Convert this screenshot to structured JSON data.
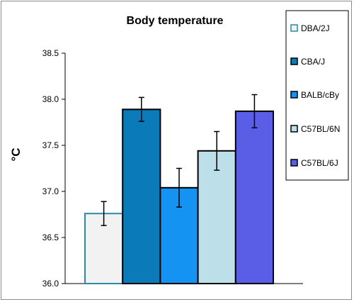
{
  "chart_data": {
    "type": "bar",
    "title": "Body temperature",
    "ylabel": "°C",
    "xlabel": "",
    "ylim": [
      36.0,
      38.5
    ],
    "yticks": [
      "36.0",
      "36.5",
      "37.0",
      "37.5",
      "38.0",
      "38.5"
    ],
    "grid": false,
    "legend_position": "right",
    "series": [
      {
        "name": "DBA/2J",
        "value": 36.76,
        "error": 0.13,
        "fill": "#f2f2f2",
        "stroke": "#2a8aa8"
      },
      {
        "name": "CBA/J",
        "value": 37.89,
        "error": 0.13,
        "fill": "#0a7ab8",
        "stroke": "#000000"
      },
      {
        "name": "BALB/cBy",
        "value": 37.04,
        "error": 0.21,
        "fill": "#1593f2",
        "stroke": "#000000"
      },
      {
        "name": "C57BL/6N",
        "value": 37.44,
        "error": 0.21,
        "fill": "#bcdfea",
        "stroke": "#000000"
      },
      {
        "name": "C57BL/6J",
        "value": 37.87,
        "error": 0.18,
        "fill": "#5a5de6",
        "stroke": "#000000"
      }
    ]
  }
}
